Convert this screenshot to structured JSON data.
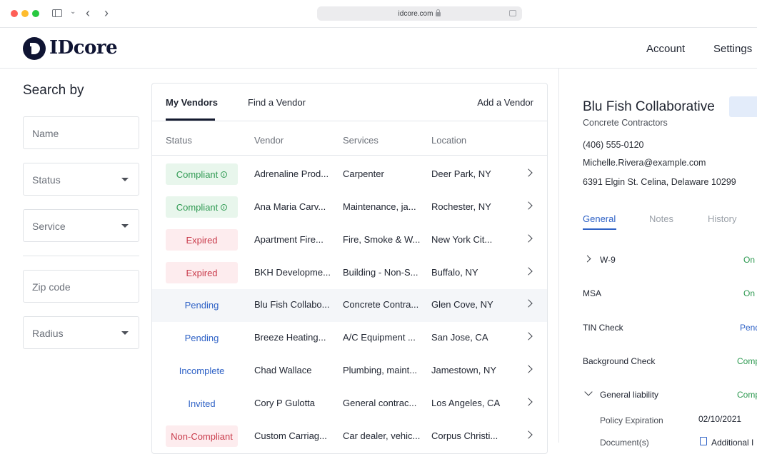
{
  "browser": {
    "url": "idcore.com"
  },
  "header": {
    "logo": "IDcore",
    "nav": [
      "Account",
      "Settings"
    ]
  },
  "filters": {
    "title": "Search by",
    "fields": [
      "Name",
      "Status",
      "Service",
      "Zip code",
      "Radius"
    ]
  },
  "vendors": {
    "tabs": [
      "My Vendors",
      "Find a Vendor",
      "Add a Vendor"
    ],
    "columns": [
      "Status",
      "Vendor",
      "Services",
      "Location"
    ],
    "rows": [
      {
        "status": "Compliant",
        "vendor": "Adrenaline Prod...",
        "services": "Carpenter",
        "location": "Deer Park, NY"
      },
      {
        "status": "Compliant",
        "vendor": "Ana Maria Carv...",
        "services": "Maintenance, ja...",
        "location": "Rochester, NY"
      },
      {
        "status": "Expired",
        "vendor": "Apartment Fire...",
        "services": "Fire, Smoke & W...",
        "location": "New York Cit..."
      },
      {
        "status": "Expired",
        "vendor": "BKH Developme...",
        "services": "Building - Non-S...",
        "location": "Buffalo, NY"
      },
      {
        "status": "Pending",
        "vendor": "Blu Fish Collabo...",
        "services": "Concrete Contra...",
        "location": "Glen Cove, NY"
      },
      {
        "status": "Pending",
        "vendor": "Breeze Heating...",
        "services": "A/C Equipment ...",
        "location": "San Jose, CA"
      },
      {
        "status": "Incomplete",
        "vendor": "Chad Wallace",
        "services": "Plumbing, maint...",
        "location": "Jamestown, NY"
      },
      {
        "status": "Invited",
        "vendor": "Cory P Gulotta",
        "services": "General contrac...",
        "location": "Los Angeles, CA"
      },
      {
        "status": "Non-Compliant",
        "vendor": "Custom Carriag...",
        "services": "Car dealer, vehic...",
        "location": "Corpus Christi..."
      }
    ]
  },
  "detail": {
    "name": "Blu Fish Collaborative",
    "category": "Concrete Contractors",
    "phone": "(406) 555-0120",
    "email": "Michelle.Rivera@example.com",
    "address": "6391 Elgin St. Celina, Delaware 10299",
    "tabs": [
      "General",
      "Notes",
      "History"
    ],
    "items": [
      {
        "label": "W-9",
        "status": "On"
      },
      {
        "label": "MSA",
        "status": "On"
      },
      {
        "label": "TIN Check",
        "status": "Pend"
      },
      {
        "label": "Background Check",
        "status": "Comp"
      },
      {
        "label": "General liability",
        "status": "Comp"
      }
    ],
    "policy_label": "Policy Expiration",
    "policy_value": "02/10/2021",
    "docs_label": "Document(s)",
    "docs_value": "Additional I"
  },
  "colors": {
    "brand": "#0f1433",
    "accent": "#2f62c6",
    "success": "#2f9a52",
    "danger": "#c93b4b"
  }
}
